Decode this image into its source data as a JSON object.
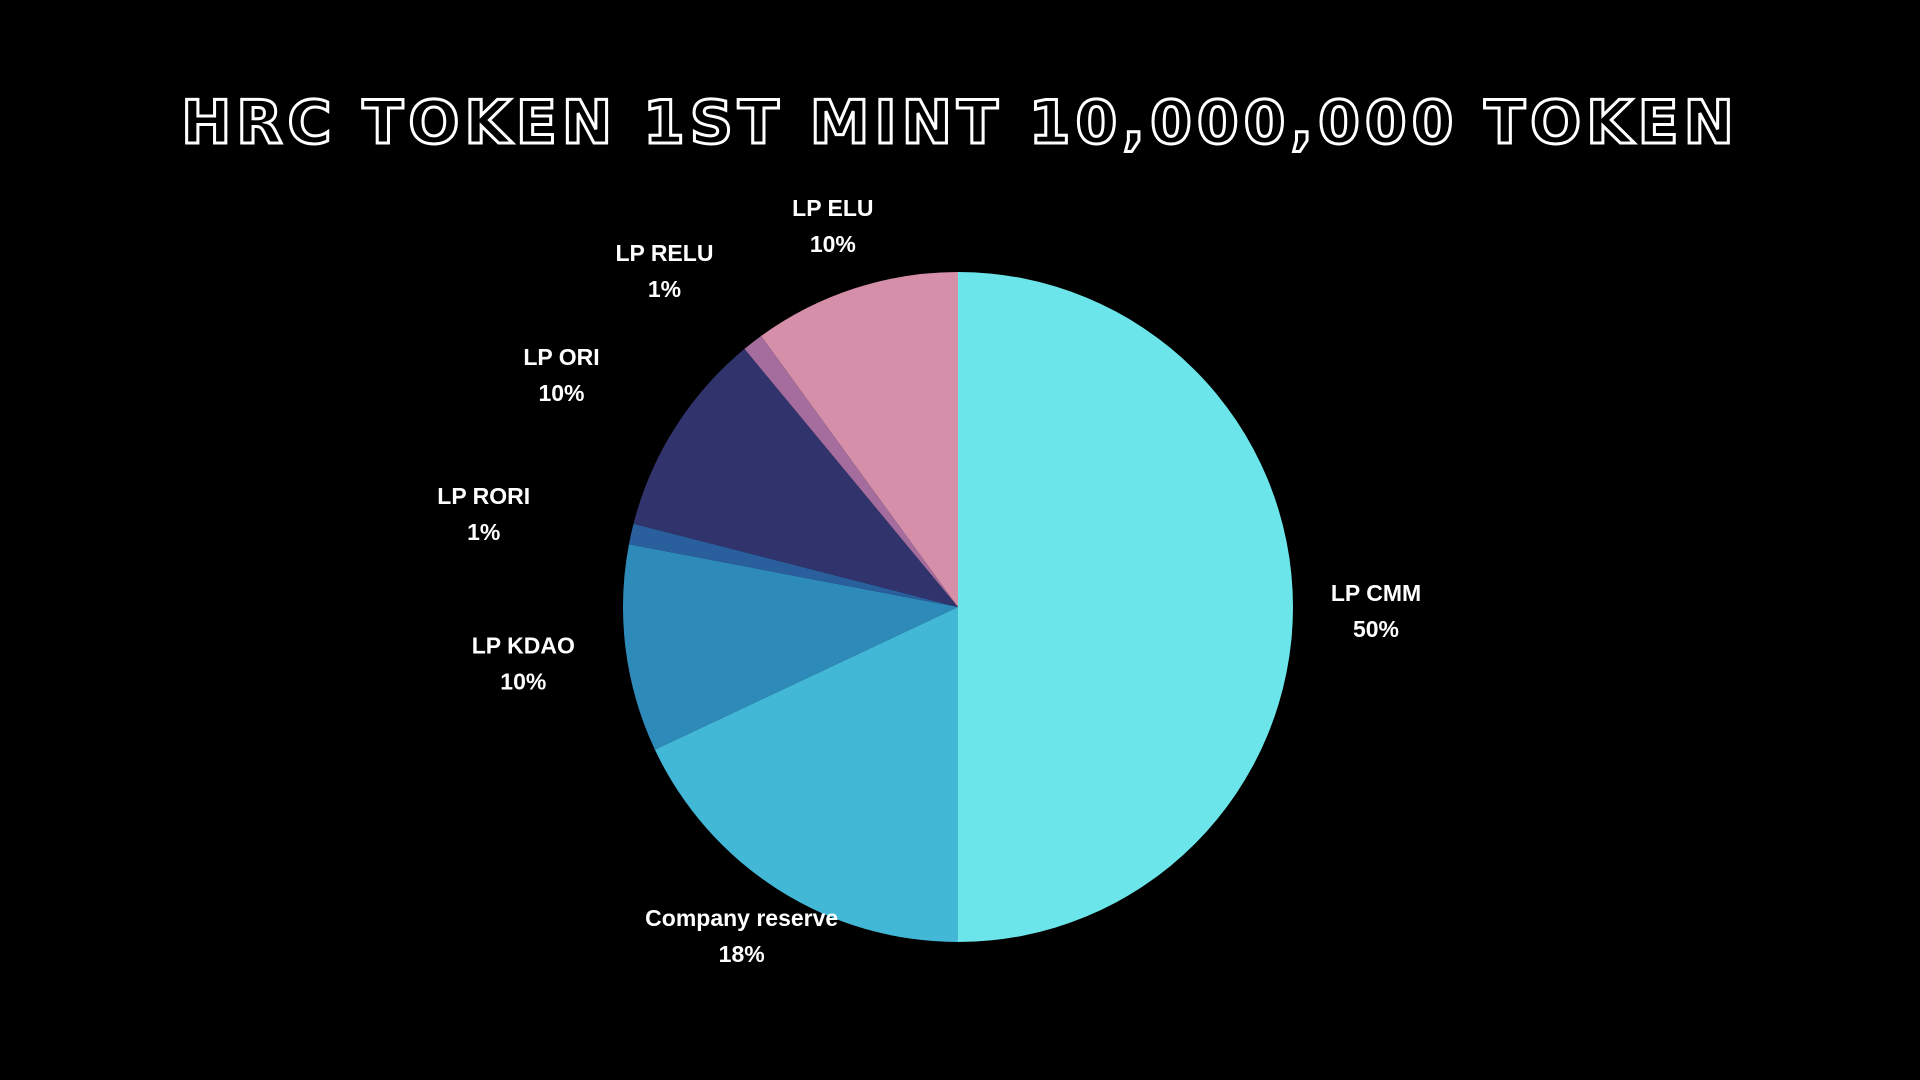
{
  "chart_data": {
    "type": "pie",
    "title": "HRC Token 1st Mint 10,000,000 Token",
    "start_angle_deg": 0,
    "direction": "clockwise",
    "slices": [
      {
        "label": "LP CMM",
        "value": 50,
        "display": "50%",
        "color": "#6be5ea"
      },
      {
        "label": "Company reserve",
        "value": 18,
        "display": "18%",
        "color": "#43b7d6"
      },
      {
        "label": "LP KDAO",
        "value": 10,
        "display": "10%",
        "color": "#2e8bb9"
      },
      {
        "label": "LP RORI",
        "value": 1,
        "display": "1%",
        "color": "#2a5f9e"
      },
      {
        "label": "LP ORI",
        "value": 10,
        "display": "10%",
        "color": "#31346c"
      },
      {
        "label": "LP RELU",
        "value": 1,
        "display": "1%",
        "color": "#a56d9e"
      },
      {
        "label": "LP ELU",
        "value": 10,
        "display": "10%",
        "color": "#d58fa8"
      }
    ],
    "legend": "none",
    "data_labels": "outside"
  }
}
